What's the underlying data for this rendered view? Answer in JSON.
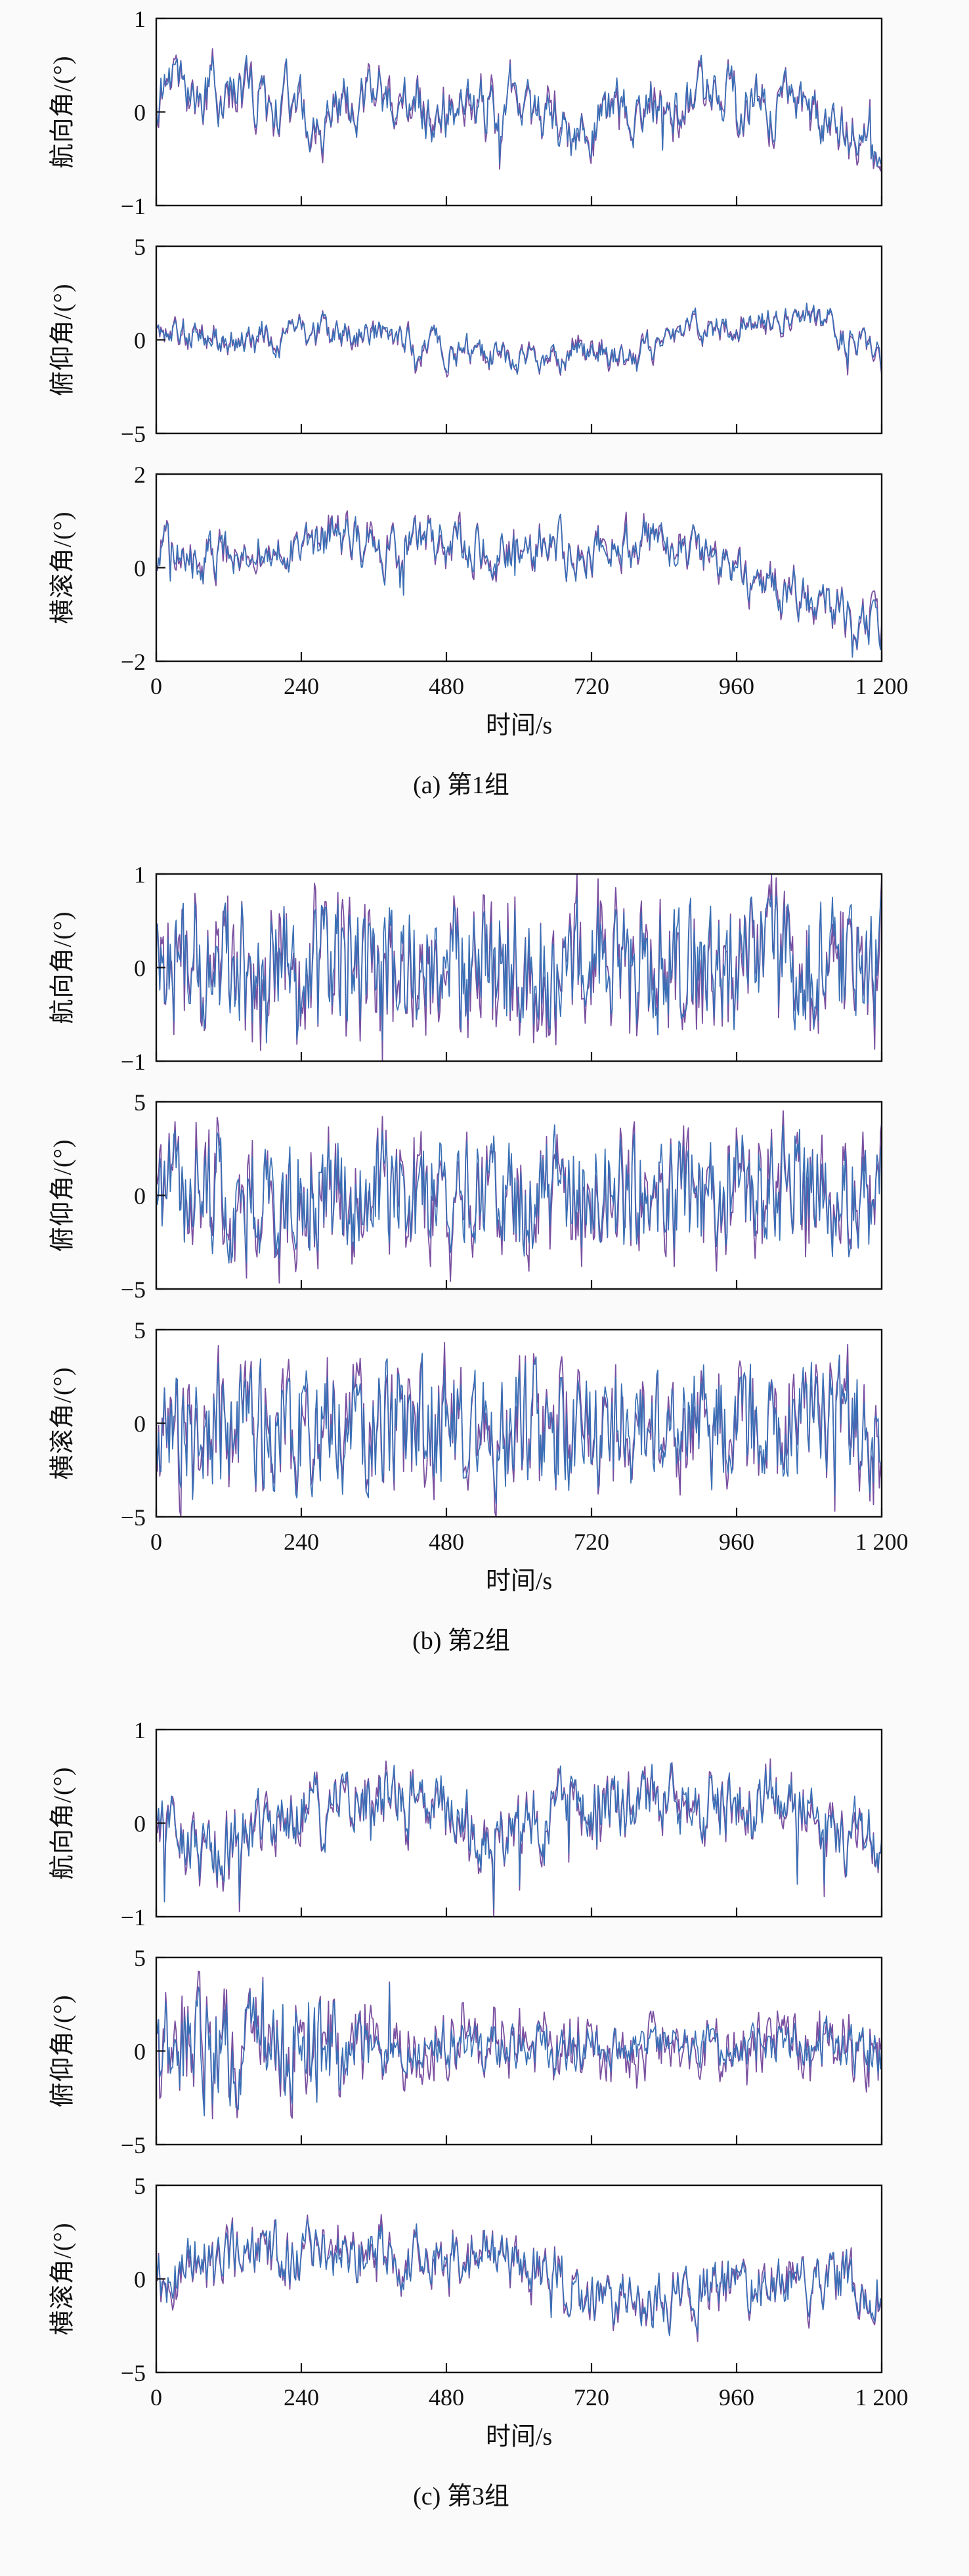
{
  "page": {
    "background": "#fafafa",
    "plot_background": "#ffffff",
    "axis_color": "#111111"
  },
  "chart_data": {
    "type": "line",
    "xlabel": "时间/s",
    "xlim": [
      0,
      1200
    ],
    "xticks": [
      0,
      240,
      480,
      720,
      960,
      1200
    ],
    "xtick_labels": [
      "0",
      "240",
      "480",
      "720",
      "960",
      "1 200"
    ],
    "series_colors": [
      "#7a4fa0",
      "#3a6fb5"
    ],
    "n_points": 620,
    "groups": [
      {
        "caption": "(a) 第1组",
        "subplots": [
          {
            "ylabel": "航向角/(°)",
            "ylim": [
              -1,
              1
            ],
            "yticks": [
              -1,
              0,
              1
            ],
            "ytick_labels": [
              "−1",
              "0",
              "1"
            ],
            "seed": 11,
            "ar": 0.72,
            "sigma": 0.22,
            "spike_prob": 0.02,
            "spike_amp": 0.3,
            "spike_bias": -0.15,
            "mean_path": [
              [
                0,
                0.15
              ],
              [
                0.05,
                0.3
              ],
              [
                0.18,
                0.05
              ],
              [
                0.3,
                0.15
              ],
              [
                0.42,
                -0.1
              ],
              [
                0.5,
                0.18
              ],
              [
                0.57,
                -0.25
              ],
              [
                0.65,
                0.1
              ],
              [
                0.72,
                0.05
              ],
              [
                0.8,
                0.2
              ],
              [
                0.88,
                0.1
              ],
              [
                0.95,
                -0.2
              ],
              [
                1,
                -0.3
              ]
            ]
          },
          {
            "ylabel": "俯仰角/(°)",
            "ylim": [
              -5,
              5
            ],
            "yticks": [
              -5,
              0,
              5
            ],
            "ytick_labels": [
              "−5",
              "0",
              "5"
            ],
            "seed": 22,
            "ar": 0.7,
            "sigma": 0.6,
            "spike_prob": 0.015,
            "spike_amp": 0.6,
            "spike_bias": -0.3,
            "mean_path": [
              [
                0,
                0.6
              ],
              [
                0.12,
                0.2
              ],
              [
                0.3,
                0.4
              ],
              [
                0.42,
                -0.6
              ],
              [
                0.5,
                -1.1
              ],
              [
                0.58,
                -0.4
              ],
              [
                0.66,
                -0.9
              ],
              [
                0.75,
                0.5
              ],
              [
                0.82,
                0.9
              ],
              [
                0.9,
                1.6
              ],
              [
                1,
                -1.2
              ]
            ]
          },
          {
            "ylabel": "横滚角/(°)",
            "ylim": [
              -2,
              2
            ],
            "yticks": [
              -2,
              0,
              2
            ],
            "ytick_labels": [
              "−2",
              "0",
              "2"
            ],
            "seed": 33,
            "ar": 0.68,
            "sigma": 0.38,
            "spike_prob": 0.03,
            "spike_amp": 0.5,
            "spike_bias": -0.45,
            "mean_path": [
              [
                0,
                0.1
              ],
              [
                0.1,
                0.35
              ],
              [
                0.25,
                0.5
              ],
              [
                0.4,
                0.45
              ],
              [
                0.55,
                0.35
              ],
              [
                0.68,
                0.6
              ],
              [
                0.78,
                0.1
              ],
              [
                0.85,
                -0.4
              ],
              [
                0.93,
                -0.9
              ],
              [
                1,
                -1.1
              ]
            ]
          }
        ]
      },
      {
        "caption": "(b) 第2组",
        "subplots": [
          {
            "ylabel": "航向角/(°)",
            "ylim": [
              -1,
              1
            ],
            "yticks": [
              -1,
              0,
              1
            ],
            "ytick_labels": [
              "−1",
              "0",
              "1"
            ],
            "seed": 44,
            "ar": 0.35,
            "sigma": 0.6,
            "spike_prob": 0.03,
            "spike_amp": 0.35,
            "spike_bias": 0,
            "mean_path": [
              [
                0,
                0
              ]
            ]
          },
          {
            "ylabel": "俯仰角/(°)",
            "ylim": [
              -5,
              5
            ],
            "yticks": [
              -5,
              0,
              5
            ],
            "ytick_labels": [
              "−5",
              "0",
              "5"
            ],
            "seed": 55,
            "ar": 0.35,
            "sigma": 2.8,
            "spike_prob": 0.02,
            "spike_amp": 1.0,
            "spike_bias": 0,
            "mean_path": [
              [
                0,
                0
              ]
            ]
          },
          {
            "ylabel": "横滚角/(°)",
            "ylim": [
              -5,
              5
            ],
            "yticks": [
              -5,
              0,
              5
            ],
            "ytick_labels": [
              "−5",
              "0",
              "5"
            ],
            "seed": 66,
            "ar": 0.38,
            "sigma": 2.8,
            "spike_prob": 0.02,
            "spike_amp": 1.5,
            "spike_bias": -1.2,
            "mean_path": [
              [
                0,
                -0.2
              ]
            ]
          }
        ]
      },
      {
        "caption": "(c) 第3组",
        "subplots": [
          {
            "ylabel": "航向角/(°)",
            "ylim": [
              -1,
              1
            ],
            "yticks": [
              -1,
              0,
              1
            ],
            "ytick_labels": [
              "−1",
              "0",
              "1"
            ],
            "seed": 77,
            "ar": 0.6,
            "sigma": 0.28,
            "spike_prob": 0.015,
            "spike_amp": 0.3,
            "spike_bias": -0.5,
            "mean_path": [
              [
                0,
                -0.05
              ],
              [
                0.07,
                -0.3
              ],
              [
                0.18,
                0.1
              ],
              [
                0.3,
                0.25
              ],
              [
                0.38,
                0.3
              ],
              [
                0.45,
                -0.15
              ],
              [
                0.52,
                0.05
              ],
              [
                0.6,
                0.15
              ],
              [
                0.7,
                0.3
              ],
              [
                0.78,
                0.1
              ],
              [
                0.85,
                0.2
              ],
              [
                0.93,
                0.0
              ],
              [
                1,
                -0.1
              ]
            ]
          },
          {
            "ylabel": "俯仰角/(°)",
            "ylim": [
              -5,
              5
            ],
            "yticks": [
              -5,
              0,
              5
            ],
            "ytick_labels": [
              "−5",
              "0",
              "5"
            ],
            "seed": 88,
            "ar": 0.45,
            "sigma": 2.6,
            "spike_prob": 0.012,
            "spike_amp": 1.5,
            "spike_bias": 1.5,
            "mean_path": [
              [
                0,
                0.2
              ]
            ],
            "amp_path": [
              [
                0,
                0.95
              ],
              [
                0.24,
                0.95
              ],
              [
                0.3,
                0.4
              ],
              [
                0.58,
                0.42
              ],
              [
                0.66,
                0.3
              ],
              [
                0.8,
                0.35
              ],
              [
                1,
                0.5
              ]
            ]
          },
          {
            "ylabel": "横滚角/(°)",
            "ylim": [
              -5,
              5
            ],
            "yticks": [
              -5,
              0,
              5
            ],
            "ytick_labels": [
              "−5",
              "0",
              "5"
            ],
            "seed": 99,
            "ar": 0.55,
            "sigma": 1.15,
            "spike_prob": 0.012,
            "spike_amp": 0.8,
            "spike_bias": -0.6,
            "mean_path": [
              [
                0,
                0.2
              ],
              [
                0.06,
                1.0
              ],
              [
                0.18,
                1.2
              ],
              [
                0.3,
                1.4
              ],
              [
                0.42,
                1.3
              ],
              [
                0.52,
                0.7
              ],
              [
                0.58,
                -0.5
              ],
              [
                0.62,
                -1.4
              ],
              [
                0.7,
                -1.2
              ],
              [
                0.78,
                -0.5
              ],
              [
                0.86,
                -0.2
              ],
              [
                0.93,
                -0.1
              ],
              [
                1,
                -0.7
              ]
            ]
          }
        ]
      }
    ]
  }
}
